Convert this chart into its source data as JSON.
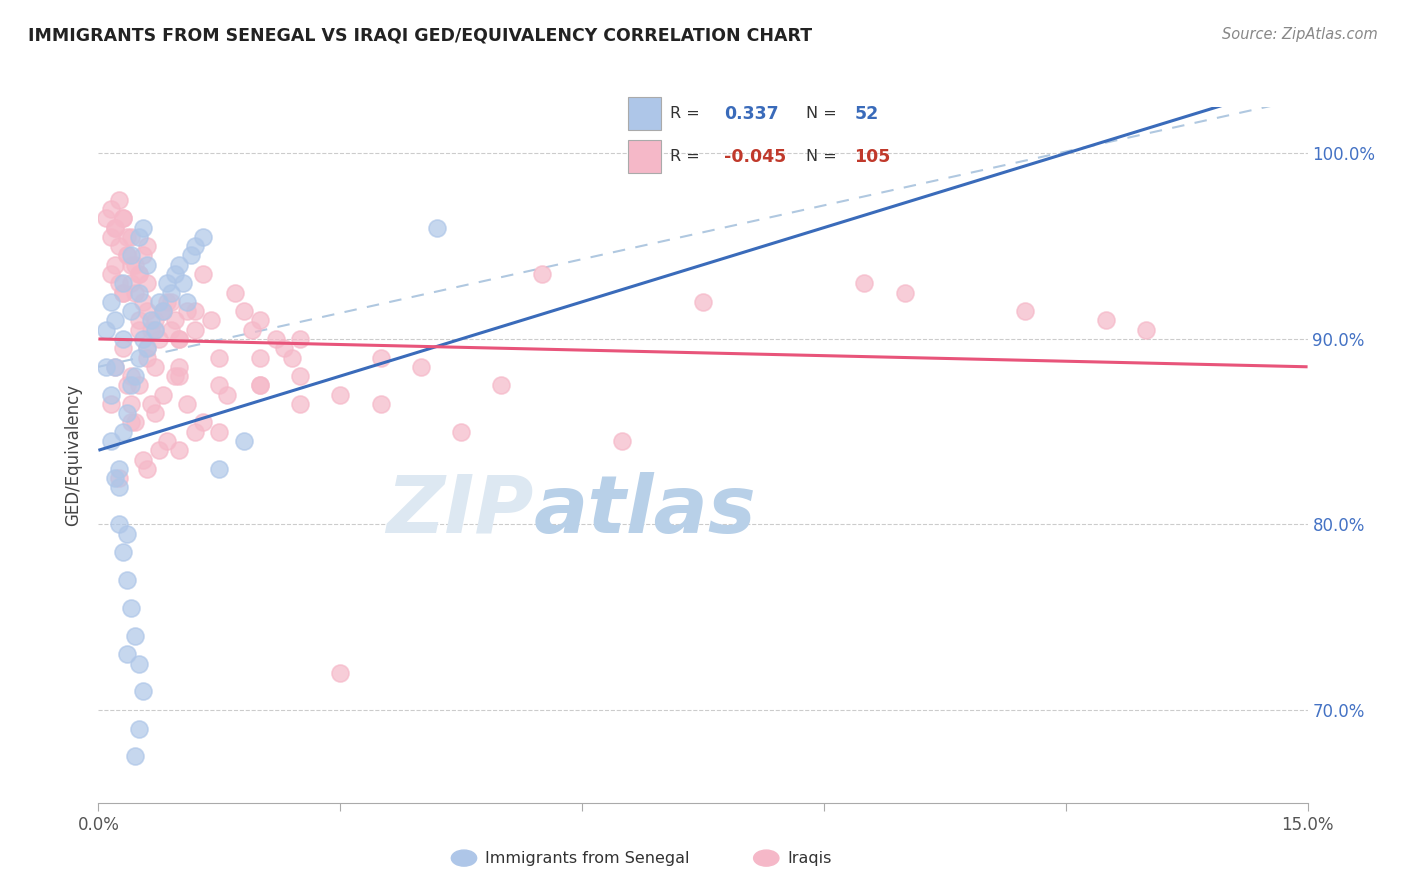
{
  "title": "IMMIGRANTS FROM SENEGAL VS IRAQI GED/EQUIVALENCY CORRELATION CHART",
  "source_text": "Source: ZipAtlas.com",
  "ylabel": "GED/Equivalency",
  "xmin": 0.0,
  "xmax": 15.0,
  "ymin": 65.0,
  "ymax": 102.5,
  "yticks": [
    70.0,
    80.0,
    90.0,
    100.0
  ],
  "ytick_labels": [
    "70.0%",
    "80.0%",
    "90.0%",
    "100.0%"
  ],
  "senegal_color": "#aec6e8",
  "iraqi_color": "#f5b8c8",
  "senegal_line_color": "#3a6bba",
  "iraqi_line_color": "#e8547a",
  "dashed_line_color": "#b0c8e0",
  "background_color": "#ffffff",
  "watermark_zip_color": "#dde8f0",
  "watermark_atlas_color": "#c5d8e8",
  "senegal_scatter": [
    [
      0.15,
      84.5
    ],
    [
      0.2,
      82.5
    ],
    [
      0.25,
      83.0
    ],
    [
      0.3,
      85.0
    ],
    [
      0.35,
      86.0
    ],
    [
      0.4,
      87.5
    ],
    [
      0.45,
      88.0
    ],
    [
      0.5,
      89.0
    ],
    [
      0.55,
      90.0
    ],
    [
      0.6,
      89.5
    ],
    [
      0.65,
      91.0
    ],
    [
      0.7,
      90.5
    ],
    [
      0.75,
      92.0
    ],
    [
      0.8,
      91.5
    ],
    [
      0.85,
      93.0
    ],
    [
      0.9,
      92.5
    ],
    [
      0.95,
      93.5
    ],
    [
      1.0,
      94.0
    ],
    [
      1.05,
      93.0
    ],
    [
      1.1,
      92.0
    ],
    [
      1.15,
      94.5
    ],
    [
      1.2,
      95.0
    ],
    [
      1.3,
      95.5
    ],
    [
      0.2,
      88.5
    ],
    [
      0.3,
      90.0
    ],
    [
      0.4,
      91.5
    ],
    [
      0.5,
      92.5
    ],
    [
      0.6,
      94.0
    ],
    [
      0.25,
      80.0
    ],
    [
      0.3,
      78.5
    ],
    [
      0.35,
      77.0
    ],
    [
      0.4,
      75.5
    ],
    [
      0.45,
      74.0
    ],
    [
      0.5,
      72.5
    ],
    [
      0.55,
      71.0
    ],
    [
      0.5,
      69.0
    ],
    [
      0.45,
      67.5
    ],
    [
      0.35,
      73.0
    ],
    [
      1.5,
      83.0
    ],
    [
      1.8,
      84.5
    ],
    [
      0.15,
      87.0
    ],
    [
      0.1,
      88.5
    ],
    [
      0.2,
      91.0
    ],
    [
      0.3,
      93.0
    ],
    [
      0.4,
      94.5
    ],
    [
      0.5,
      95.5
    ],
    [
      0.55,
      96.0
    ],
    [
      0.15,
      92.0
    ],
    [
      0.1,
      90.5
    ],
    [
      4.2,
      96.0
    ],
    [
      0.25,
      82.0
    ],
    [
      0.35,
      79.5
    ]
  ],
  "iraqi_scatter": [
    [
      0.15,
      93.5
    ],
    [
      0.2,
      94.0
    ],
    [
      0.25,
      93.0
    ],
    [
      0.3,
      92.5
    ],
    [
      0.35,
      94.5
    ],
    [
      0.4,
      93.0
    ],
    [
      0.45,
      92.5
    ],
    [
      0.5,
      93.5
    ],
    [
      0.55,
      92.0
    ],
    [
      0.6,
      91.5
    ],
    [
      0.65,
      90.5
    ],
    [
      0.7,
      91.0
    ],
    [
      0.75,
      90.0
    ],
    [
      0.8,
      91.5
    ],
    [
      0.85,
      92.0
    ],
    [
      0.9,
      90.5
    ],
    [
      0.95,
      91.0
    ],
    [
      1.0,
      90.0
    ],
    [
      1.1,
      91.5
    ],
    [
      1.2,
      90.5
    ],
    [
      0.15,
      95.5
    ],
    [
      0.2,
      96.0
    ],
    [
      0.25,
      95.0
    ],
    [
      0.3,
      96.5
    ],
    [
      0.35,
      94.5
    ],
    [
      0.4,
      95.5
    ],
    [
      0.45,
      94.0
    ],
    [
      0.5,
      93.5
    ],
    [
      0.55,
      94.5
    ],
    [
      0.6,
      95.0
    ],
    [
      0.1,
      96.5
    ],
    [
      0.15,
      97.0
    ],
    [
      0.2,
      96.0
    ],
    [
      0.25,
      97.5
    ],
    [
      0.3,
      96.5
    ],
    [
      0.35,
      95.5
    ],
    [
      0.2,
      88.5
    ],
    [
      0.3,
      89.5
    ],
    [
      0.4,
      88.0
    ],
    [
      0.5,
      87.5
    ],
    [
      0.6,
      89.0
    ],
    [
      0.7,
      88.5
    ],
    [
      0.8,
      87.0
    ],
    [
      1.0,
      88.5
    ],
    [
      1.5,
      87.5
    ],
    [
      2.0,
      89.0
    ],
    [
      2.5,
      88.0
    ],
    [
      3.0,
      87.0
    ],
    [
      0.15,
      86.5
    ],
    [
      0.4,
      85.5
    ],
    [
      0.7,
      86.0
    ],
    [
      1.2,
      85.0
    ],
    [
      0.5,
      90.5
    ],
    [
      0.8,
      91.5
    ],
    [
      0.9,
      92.0
    ],
    [
      1.3,
      93.5
    ],
    [
      1.7,
      92.5
    ],
    [
      2.0,
      91.0
    ],
    [
      2.2,
      90.0
    ],
    [
      0.6,
      89.5
    ],
    [
      1.0,
      90.0
    ],
    [
      1.4,
      91.0
    ],
    [
      1.8,
      91.5
    ],
    [
      2.3,
      89.5
    ],
    [
      0.35,
      87.5
    ],
    [
      0.65,
      86.5
    ],
    [
      0.95,
      88.0
    ],
    [
      1.5,
      89.0
    ],
    [
      1.9,
      90.5
    ],
    [
      2.4,
      89.0
    ],
    [
      0.45,
      85.5
    ],
    [
      0.75,
      84.0
    ],
    [
      1.1,
      86.5
    ],
    [
      1.6,
      87.0
    ],
    [
      5.5,
      93.5
    ],
    [
      7.5,
      92.0
    ],
    [
      0.55,
      83.5
    ],
    [
      0.85,
      84.5
    ],
    [
      1.3,
      85.5
    ],
    [
      2.0,
      87.5
    ],
    [
      3.5,
      86.5
    ],
    [
      0.25,
      82.5
    ],
    [
      0.6,
      83.0
    ],
    [
      1.0,
      84.0
    ],
    [
      1.5,
      85.0
    ],
    [
      2.5,
      86.5
    ],
    [
      4.5,
      85.0
    ],
    [
      6.5,
      84.5
    ],
    [
      0.3,
      92.5
    ],
    [
      0.5,
      91.0
    ],
    [
      0.7,
      90.5
    ],
    [
      1.2,
      91.5
    ],
    [
      2.5,
      90.0
    ],
    [
      3.5,
      89.0
    ],
    [
      4.0,
      88.5
    ],
    [
      5.0,
      87.5
    ],
    [
      1.0,
      88.0
    ],
    [
      2.0,
      87.5
    ],
    [
      0.4,
      94.0
    ],
    [
      0.6,
      93.0
    ],
    [
      3.0,
      72.0
    ],
    [
      0.4,
      86.5
    ],
    [
      9.5,
      93.0
    ],
    [
      10.0,
      92.5
    ],
    [
      11.5,
      91.5
    ],
    [
      12.5,
      91.0
    ],
    [
      13.0,
      90.5
    ]
  ]
}
